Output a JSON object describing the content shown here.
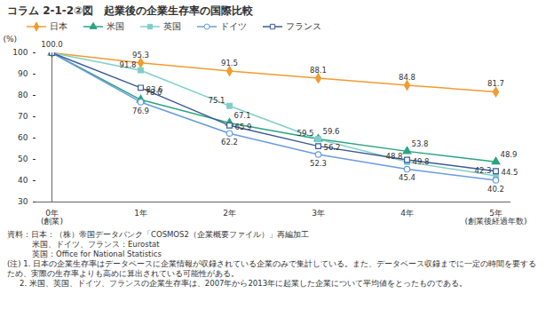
{
  "chart_data": {
    "type": "line",
    "title": "コラム 2-1-2②図　起業後の企業生存率の国際比較",
    "ylabel": "(%)",
    "categories": [
      "0年\n(創業)",
      "1年",
      "2年",
      "3年",
      "4年",
      "5年\n(創業後経過年数)"
    ],
    "ylim": [
      30,
      100
    ],
    "yticks": [
      30,
      40,
      50,
      60,
      70,
      80,
      90,
      100
    ],
    "grid": false,
    "legend": "top",
    "data_labels": true,
    "series": [
      {
        "name": "日本",
        "color": "#f29b30",
        "marker": "diamond",
        "values": [
          100,
          95.3,
          91.5,
          88.1,
          84.8,
          81.7
        ],
        "value_labels": [
          "100.0",
          "95.3",
          "91.5",
          "88.1",
          "84.8",
          "81.7"
        ]
      },
      {
        "name": "米国",
        "color": "#2aa37f",
        "marker": "triangle",
        "values": [
          100,
          78.0,
          67.1,
          59.6,
          53.8,
          48.9
        ],
        "value_labels": [
          null,
          "78.0",
          "67.1",
          "59.6",
          "53.8",
          "48.9"
        ]
      },
      {
        "name": "英国",
        "color": "#7fcfc8",
        "marker": "square",
        "values": [
          100,
          91.8,
          75.1,
          59.5,
          48.8,
          42.3
        ],
        "value_labels": [
          null,
          "91.8",
          "75.1",
          "59.5",
          "48.8",
          "42.3"
        ]
      },
      {
        "name": "ドイツ",
        "color": "#6b9be0",
        "marker": "circle_open",
        "values": [
          100,
          76.9,
          62.2,
          52.3,
          45.4,
          40.2
        ],
        "value_labels": [
          null,
          "76.9",
          "62.2",
          "52.3",
          "45.4",
          "40.2"
        ]
      },
      {
        "name": "フランス",
        "color": "#3c5a9a",
        "marker": "square_open",
        "values": [
          100,
          83.6,
          65.9,
          56.2,
          49.8,
          44.5
        ],
        "value_labels": [
          null,
          "83.6",
          "65.9",
          "56.2",
          "49.8",
          "44.5"
        ]
      }
    ],
    "source": [
      "資料：日本：（株）帝国データバンク「COSMOS2（企業概要ファイル）」再編加工",
      "米国、ドイツ、フランス：Eurostat",
      "英国：Office for National Statistics"
    ],
    "notes": [
      "(注) 1. 日本の企業生存率はデータベースに企業情報が収録されている企業のみで集計している。また、データベース収録までに一定の時間を要するため、実際の生存率よりも高めに算出されている可能性がある。",
      "2. 米国、英国、ドイツ、フランスの企業生存率は、2007年から2013年に起業した企業について平均値をとったものである。"
    ]
  }
}
